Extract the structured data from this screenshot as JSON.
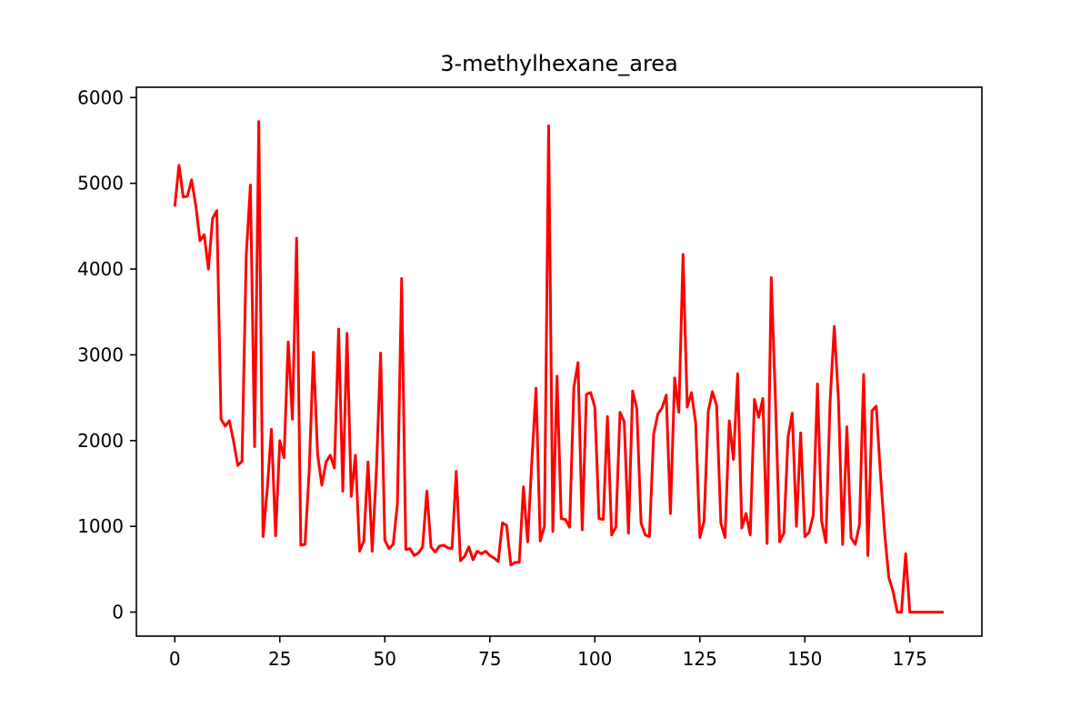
{
  "chart_data": {
    "type": "line",
    "title": "3-methylhexane_area",
    "xlabel": "",
    "ylabel": "",
    "xlim": [
      -9.15,
      192.15
    ],
    "ylim": [
      -280,
      6120
    ],
    "xticks": [
      0,
      25,
      50,
      75,
      100,
      125,
      150,
      175
    ],
    "yticks": [
      0,
      1000,
      2000,
      3000,
      4000,
      5000,
      6000
    ],
    "grid": false,
    "legend": "none",
    "series": [
      {
        "color": "#ff0000",
        "x": [
          0,
          1,
          2,
          3,
          4,
          5,
          6,
          7,
          8,
          9,
          10,
          11,
          12,
          13,
          14,
          15,
          16,
          17,
          18,
          19,
          20,
          21,
          22,
          23,
          24,
          25,
          26,
          27,
          28,
          29,
          30,
          31,
          32,
          33,
          34,
          35,
          36,
          37,
          38,
          39,
          40,
          41,
          42,
          43,
          44,
          45,
          46,
          47,
          48,
          49,
          50,
          51,
          52,
          53,
          54,
          55,
          56,
          57,
          58,
          59,
          60,
          61,
          62,
          63,
          64,
          65,
          66,
          67,
          68,
          69,
          70,
          71,
          72,
          73,
          74,
          75,
          76,
          77,
          78,
          79,
          80,
          81,
          82,
          83,
          84,
          85,
          86,
          87,
          88,
          89,
          90,
          91,
          92,
          93,
          94,
          95,
          96,
          97,
          98,
          99,
          100,
          101,
          102,
          103,
          104,
          105,
          106,
          107,
          108,
          109,
          110,
          111,
          112,
          113,
          114,
          115,
          116,
          117,
          118,
          119,
          120,
          121,
          122,
          123,
          124,
          125,
          126,
          127,
          128,
          129,
          130,
          131,
          132,
          133,
          134,
          135,
          136,
          137,
          138,
          139,
          140,
          141,
          142,
          143,
          144,
          145,
          146,
          147,
          148,
          149,
          150,
          151,
          152,
          153,
          154,
          155,
          156,
          157,
          158,
          159,
          160,
          161,
          162,
          163,
          164,
          165,
          166,
          167,
          168,
          169,
          170,
          171,
          172,
          173,
          174,
          175,
          176,
          177,
          178,
          179,
          180,
          181,
          182,
          183
        ],
        "y": [
          4730,
          5210,
          4840,
          4850,
          5040,
          4740,
          4330,
          4400,
          4000,
          4590,
          4680,
          2250,
          2170,
          2230,
          1990,
          1710,
          1760,
          4150,
          4980,
          1930,
          5720,
          880,
          1420,
          2130,
          890,
          2000,
          1800,
          3150,
          2250,
          4360,
          780,
          790,
          1650,
          3030,
          1840,
          1480,
          1750,
          1830,
          1680,
          3300,
          1410,
          3250,
          1350,
          1830,
          710,
          830,
          1750,
          710,
          1660,
          3020,
          840,
          740,
          790,
          1260,
          3890,
          730,
          740,
          660,
          690,
          760,
          1410,
          760,
          700,
          770,
          780,
          750,
          740,
          1640,
          600,
          650,
          760,
          610,
          710,
          680,
          710,
          660,
          630,
          590,
          1040,
          1010,
          550,
          580,
          580,
          1460,
          820,
          1760,
          2610,
          830,
          1000,
          5670,
          940,
          2750,
          1090,
          1080,
          990,
          2620,
          2910,
          960,
          2540,
          2560,
          2390,
          1090,
          1080,
          2280,
          900,
          990,
          2330,
          2220,
          920,
          2580,
          2370,
          1040,
          900,
          880,
          2070,
          2310,
          2380,
          2530,
          1150,
          2730,
          2330,
          4170,
          2390,
          2560,
          2210,
          870,
          1060,
          2340,
          2570,
          2410,
          1040,
          870,
          2230,
          1780,
          2780,
          980,
          1150,
          900,
          2480,
          2270,
          2490,
          800,
          3900,
          2470,
          820,
          920,
          2040,
          2320,
          1000,
          2090,
          880,
          930,
          1130,
          2660,
          1060,
          810,
          2450,
          3330,
          2480,
          790,
          2160,
          870,
          790,
          1020,
          2770,
          660,
          2350,
          2400,
          1610,
          920,
          400,
          240,
          0,
          0,
          680,
          0,
          0,
          0,
          0,
          0,
          0,
          0,
          0,
          0
        ]
      }
    ]
  }
}
